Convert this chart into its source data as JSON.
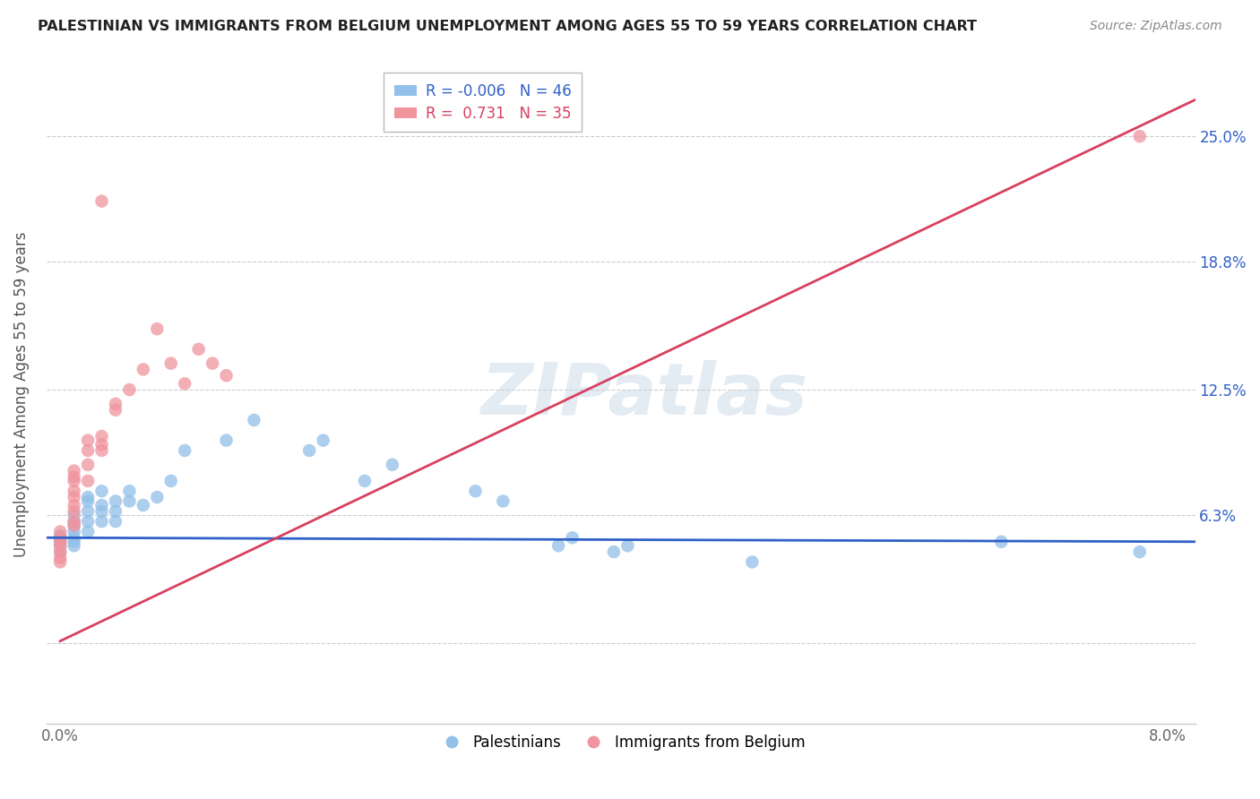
{
  "title": "PALESTINIAN VS IMMIGRANTS FROM BELGIUM UNEMPLOYMENT AMONG AGES 55 TO 59 YEARS CORRELATION CHART",
  "source": "Source: ZipAtlas.com",
  "ylabel": "Unemployment Among Ages 55 to 59 years",
  "xlim": [
    -0.001,
    0.082
  ],
  "ylim": [
    -0.04,
    0.285
  ],
  "xticks": [
    0.0,
    0.02,
    0.04,
    0.06,
    0.08
  ],
  "xticklabels": [
    "0.0%",
    "",
    "",
    "",
    "8.0%"
  ],
  "ytick_positions": [
    0.0,
    0.063,
    0.125,
    0.188,
    0.25
  ],
  "left_yticklabels": [
    "",
    "",
    "",
    "",
    ""
  ],
  "right_yticklabels": [
    "",
    "6.3%",
    "12.5%",
    "18.8%",
    "25.0%"
  ],
  "legend_label1": "Palestinians",
  "legend_label2": "Immigrants from Belgium",
  "blue_color": "#92c0e8",
  "pink_color": "#f0949e",
  "blue_line_color": "#3060c8",
  "pink_line_color": "#d84060",
  "watermark": "ZIPatlas",
  "blue_R": -0.006,
  "pink_R": 0.731,
  "blue_N": 46,
  "pink_N": 35,
  "blue_line_y0": 0.052,
  "blue_line_y1": 0.05,
  "pink_line_x0": 0.0,
  "pink_line_y0": 0.001,
  "pink_line_x1": 0.082,
  "pink_line_y1": 0.268,
  "blue_points": [
    [
      0.0,
      0.05
    ],
    [
      0.0,
      0.05
    ],
    [
      0.0,
      0.048
    ],
    [
      0.0,
      0.052
    ],
    [
      0.0,
      0.045
    ],
    [
      0.0,
      0.053
    ],
    [
      0.001,
      0.05
    ],
    [
      0.001,
      0.048
    ],
    [
      0.001,
      0.052
    ],
    [
      0.001,
      0.055
    ],
    [
      0.001,
      0.058
    ],
    [
      0.001,
      0.06
    ],
    [
      0.001,
      0.063
    ],
    [
      0.002,
      0.055
    ],
    [
      0.002,
      0.06
    ],
    [
      0.002,
      0.065
    ],
    [
      0.002,
      0.07
    ],
    [
      0.002,
      0.072
    ],
    [
      0.003,
      0.06
    ],
    [
      0.003,
      0.065
    ],
    [
      0.003,
      0.068
    ],
    [
      0.003,
      0.075
    ],
    [
      0.004,
      0.06
    ],
    [
      0.004,
      0.065
    ],
    [
      0.004,
      0.07
    ],
    [
      0.005,
      0.07
    ],
    [
      0.005,
      0.075
    ],
    [
      0.006,
      0.068
    ],
    [
      0.007,
      0.072
    ],
    [
      0.008,
      0.08
    ],
    [
      0.009,
      0.095
    ],
    [
      0.012,
      0.1
    ],
    [
      0.014,
      0.11
    ],
    [
      0.018,
      0.095
    ],
    [
      0.019,
      0.1
    ],
    [
      0.022,
      0.08
    ],
    [
      0.024,
      0.088
    ],
    [
      0.03,
      0.075
    ],
    [
      0.032,
      0.07
    ],
    [
      0.036,
      0.048
    ],
    [
      0.037,
      0.052
    ],
    [
      0.04,
      0.045
    ],
    [
      0.041,
      0.048
    ],
    [
      0.05,
      0.04
    ],
    [
      0.068,
      0.05
    ],
    [
      0.078,
      0.045
    ]
  ],
  "pink_points": [
    [
      0.0,
      0.05
    ],
    [
      0.0,
      0.048
    ],
    [
      0.0,
      0.045
    ],
    [
      0.0,
      0.052
    ],
    [
      0.0,
      0.042
    ],
    [
      0.0,
      0.055
    ],
    [
      0.0,
      0.04
    ],
    [
      0.001,
      0.058
    ],
    [
      0.001,
      0.06
    ],
    [
      0.001,
      0.065
    ],
    [
      0.001,
      0.068
    ],
    [
      0.001,
      0.072
    ],
    [
      0.001,
      0.075
    ],
    [
      0.001,
      0.08
    ],
    [
      0.001,
      0.082
    ],
    [
      0.001,
      0.085
    ],
    [
      0.002,
      0.08
    ],
    [
      0.002,
      0.088
    ],
    [
      0.002,
      0.095
    ],
    [
      0.002,
      0.1
    ],
    [
      0.003,
      0.095
    ],
    [
      0.003,
      0.098
    ],
    [
      0.003,
      0.102
    ],
    [
      0.004,
      0.115
    ],
    [
      0.004,
      0.118
    ],
    [
      0.005,
      0.125
    ],
    [
      0.006,
      0.135
    ],
    [
      0.007,
      0.155
    ],
    [
      0.008,
      0.138
    ],
    [
      0.009,
      0.128
    ],
    [
      0.01,
      0.145
    ],
    [
      0.011,
      0.138
    ],
    [
      0.012,
      0.132
    ],
    [
      0.003,
      0.218
    ],
    [
      0.078,
      0.25
    ]
  ]
}
